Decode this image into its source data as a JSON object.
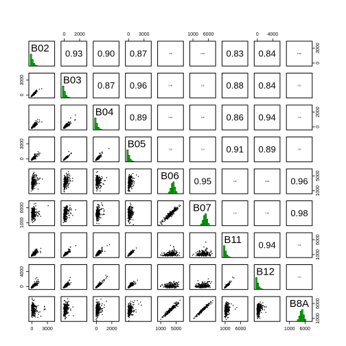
{
  "chart_data": {
    "type": "scatter",
    "subtype": "pairs-matrix",
    "variables": [
      "B02",
      "B03",
      "B04",
      "B05",
      "B06",
      "B07",
      "B11",
      "B12",
      "B8A"
    ],
    "correlations": {
      "0-1": "0.93",
      "0-2": "0.90",
      "0-3": "0.87",
      "0-4": "0.30",
      "0-5": "0.031",
      "0-6": "0.83",
      "0-7": "0.84",
      "0-8": "0.067",
      "1-2": "0.87",
      "1-3": "0.96",
      "1-4": "0.40",
      "1-5": "0.30",
      "1-6": "0.88",
      "1-7": "0.84",
      "1-8": "0.33",
      "2-3": "0.89",
      "2-4": "0.011",
      "2-5": "0.20",
      "2-6": "0.86",
      "2-7": "0.94",
      "2-8": "0.16",
      "3-4": "0.35",
      "3-5": "0.14",
      "3-6": "0.91",
      "3-7": "0.89",
      "3-8": "0.35",
      "4-5": "0.95",
      "4-6": "0.29",
      "4-7": "0.062",
      "4-8": "0.96",
      "5-6": "0.10",
      "5-7": "0.18",
      "5-8": "0.98",
      "6-7": "0.94",
      "6-8": "0.16",
      "7-8": "0.30"
    },
    "axis_ticks": {
      "top": [
        {
          "col": 1,
          "labels": [
            "0",
            "2000"
          ]
        },
        {
          "col": 3,
          "labels": [
            "0",
            "3000"
          ]
        },
        {
          "col": 5,
          "labels": [
            "1000",
            "6000"
          ]
        },
        {
          "col": 7,
          "labels": [
            "0",
            "4000"
          ]
        }
      ],
      "bottom": [
        {
          "col": 0,
          "labels": [
            "0",
            "3000"
          ]
        },
        {
          "col": 2,
          "labels": [
            "0",
            "2000"
          ]
        },
        {
          "col": 4,
          "labels": [
            "1000",
            "5000"
          ]
        },
        {
          "col": 6,
          "labels": [
            "1000",
            "6000"
          ]
        },
        {
          "col": 8,
          "labels": [
            "1000",
            "6000"
          ]
        }
      ],
      "left": [
        {
          "row": 1,
          "labels": [
            "0",
            "3000"
          ]
        },
        {
          "row": 3,
          "labels": [
            "0",
            "3000"
          ]
        },
        {
          "row": 5,
          "labels": [
            "1000",
            "6000"
          ]
        },
        {
          "row": 7,
          "labels": [
            "0",
            "4000"
          ]
        }
      ],
      "right": [
        {
          "row": 0,
          "labels": [
            "0",
            "3000"
          ]
        },
        {
          "row": 2,
          "labels": [
            "0",
            "2000"
          ]
        },
        {
          "row": 4,
          "labels": [
            "1000",
            "5000"
          ]
        },
        {
          "row": 6,
          "labels": [
            "1000",
            "6000"
          ]
        },
        {
          "row": 8,
          "labels": [
            "1000",
            "6000"
          ]
        }
      ]
    },
    "histogram_color": "#00cc00",
    "point_color": "#000000",
    "grid": false
  }
}
